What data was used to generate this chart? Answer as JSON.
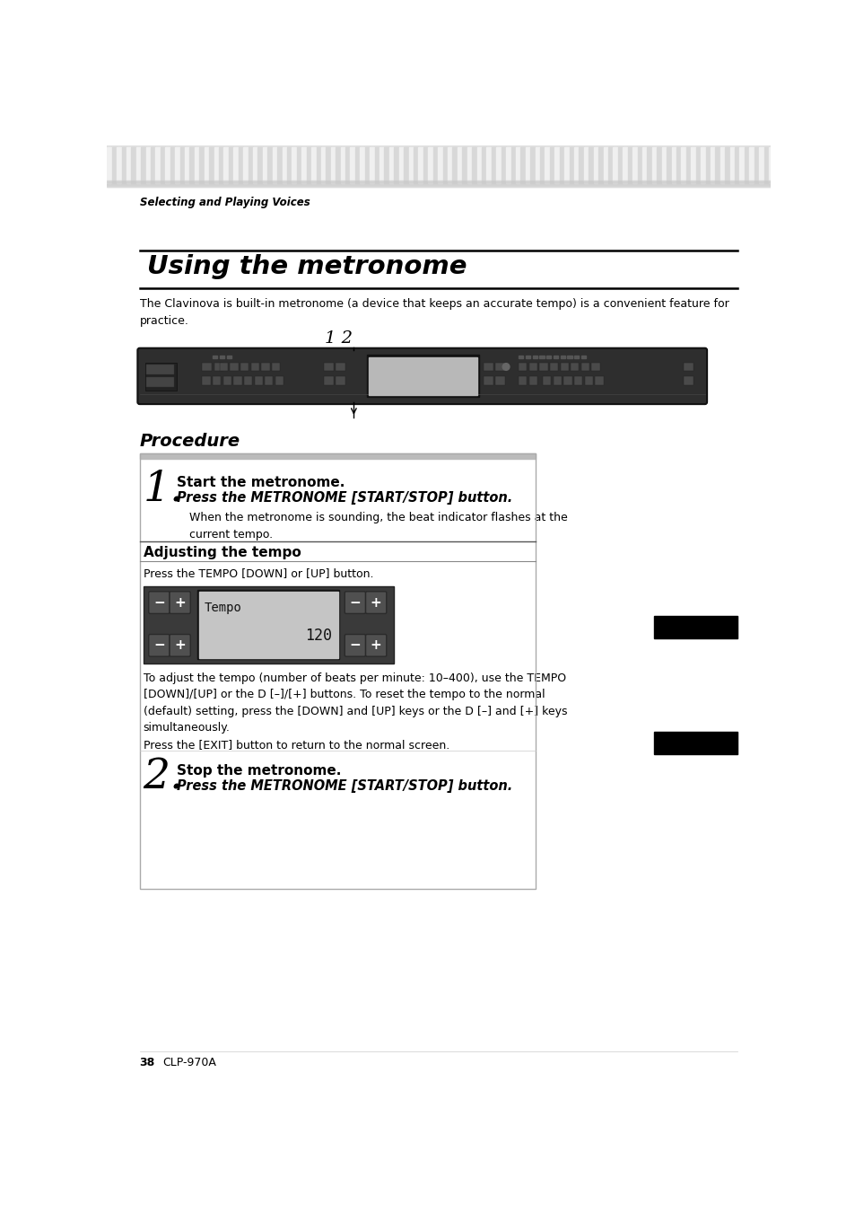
{
  "bg_color": "#ffffff",
  "header_text": "Selecting and Playing Voices",
  "title": "Using the metronome",
  "intro_text": "The Clavinova is built-in metronome (a device that keeps an accurate tempo) is a convenient feature for\npractice.",
  "label_12": "1 2",
  "procedure_title": "Procedure",
  "step1_num": "1.",
  "step1_head": "Start the metronome.",
  "step1_bold": "Press the METRONOME [START/STOP] button.",
  "step1_sub": "When the metronome is sounding, the beat indicator flashes at the\ncurrent tempo.",
  "adj_title": "Adjusting the tempo",
  "adj_text": "Press the TEMPO [DOWN] or [UP] button.",
  "tempo_display_text": "Tempo",
  "tempo_value": "120",
  "adj_body": "To adjust the tempo (number of beats per minute: 10–400), use the TEMPO\n[DOWN]/[UP] or the D [–]/[+] buttons. To reset the tempo to the normal\n(default) setting, press the [DOWN] and [UP] keys or the D [–] and [+] keys\nsimultaneously.\nPress the [EXIT] button to return to the normal screen.",
  "step2_num": "2.",
  "step2_head": "Stop the metronome.",
  "step2_bold": "Press the METRONOME [START/STOP] button.",
  "footer_text": "38",
  "footer_model": "CLP-970A",
  "black_rect_color": "#000000",
  "kbd_bg": "#2e2e2e",
  "kbd_display_bg": "#b8b8b8",
  "stripe_colors": [
    "#e8e8e8",
    "#d0d0d0"
  ]
}
